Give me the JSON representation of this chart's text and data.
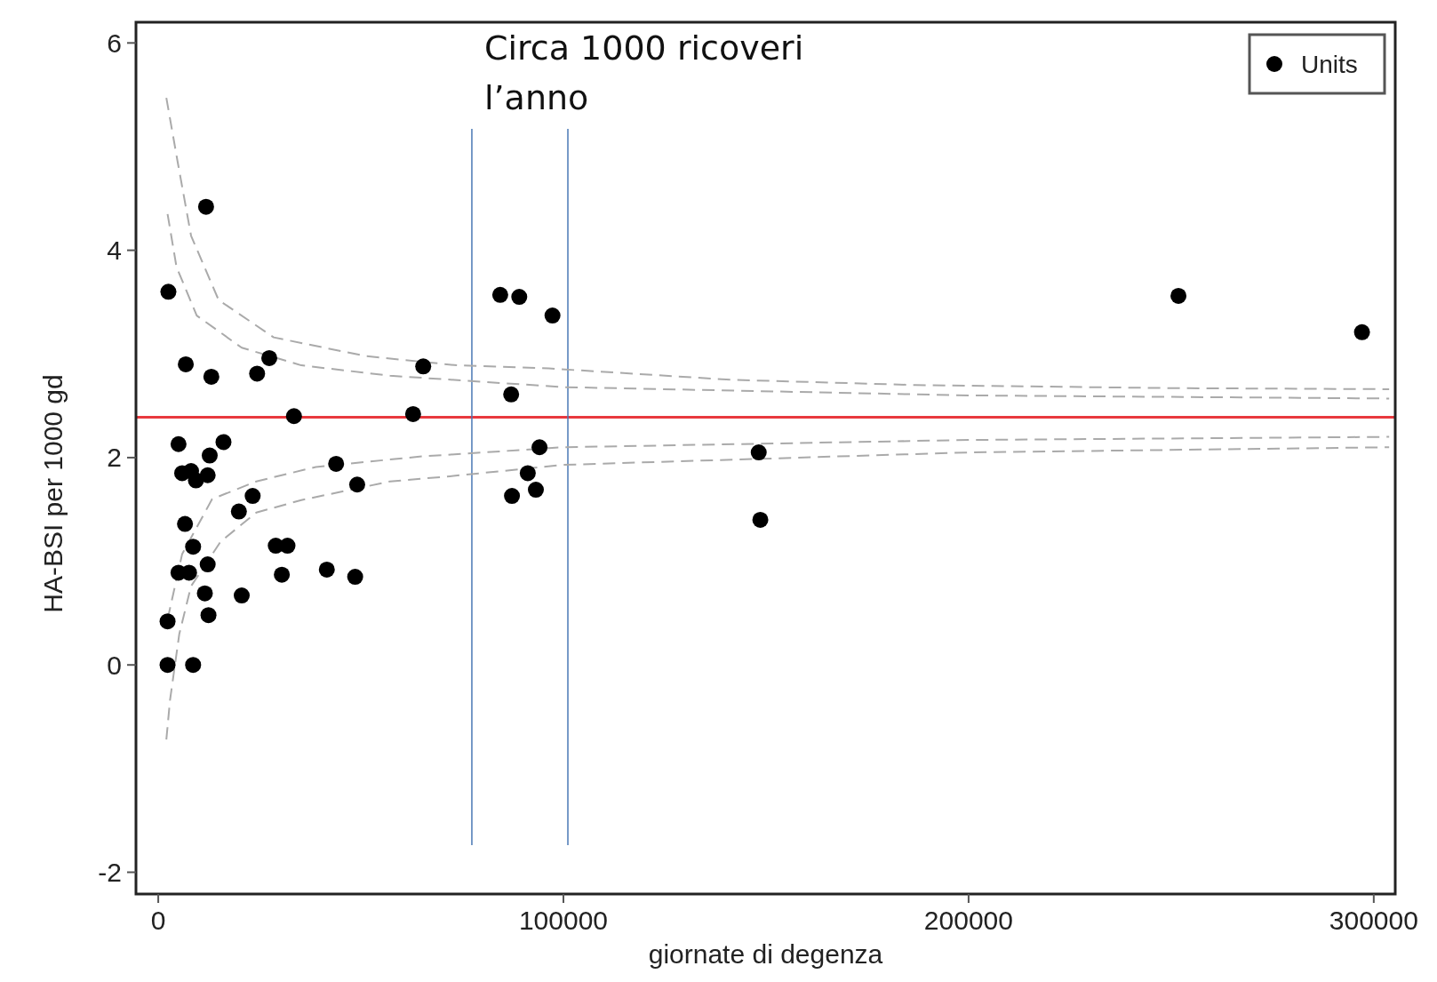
{
  "chart_data": {
    "type": "scatter",
    "xlabel": "giornate di degenza",
    "ylabel": "HA-BSI per 1000 gd",
    "annotations": [
      "Circa 1000 ricoveri l’anno"
    ],
    "xlim": [
      -5500,
      305300
    ],
    "ylim": [
      -2.21,
      6.2
    ],
    "xticks": [
      0,
      100000,
      200000,
      300000
    ],
    "yticks": [
      -2,
      0,
      2,
      4,
      6
    ],
    "grid": false,
    "legend": "top right",
    "marker": "circle",
    "ref_lines": [
      {
        "axis": "y",
        "value": 2.39,
        "color": "#e8393d",
        "line_style": "solid"
      },
      {
        "axis": "x",
        "value": 77400,
        "color": "#4a78b5",
        "line_style": "solid"
      },
      {
        "axis": "x",
        "value": 101100,
        "color": "#4a78b5",
        "line_style": "solid"
      }
    ],
    "series": [
      {
        "type": "line",
        "color": "#aaaaaa",
        "line_style": "dashed",
        "marker": "none",
        "x": [
          2000,
          4800,
          8100,
          14900,
          28500,
          51100,
          73800,
          96400,
          141600,
          186900,
          250000,
          303800
        ],
        "values": [
          5.47,
          4.85,
          4.14,
          3.52,
          3.16,
          2.98,
          2.89,
          2.86,
          2.75,
          2.7,
          2.67,
          2.66
        ]
      },
      {
        "type": "line",
        "color": "#aaaaaa",
        "line_style": "dashed",
        "marker": "none",
        "x": [
          2300,
          4500,
          9500,
          20600,
          35300,
          57200,
          100000,
          200000,
          303800
        ],
        "values": [
          4.35,
          3.84,
          3.37,
          3.06,
          2.89,
          2.79,
          2.68,
          2.6,
          2.57
        ]
      },
      {
        "type": "line",
        "color": "#aaaaaa",
        "line_style": "dashed",
        "marker": "none",
        "x": [
          2300,
          5900,
          13300,
          24200,
          38900,
          64500,
          100000,
          200000,
          303800
        ],
        "values": [
          0.44,
          1.07,
          1.6,
          1.77,
          1.91,
          2.01,
          2.1,
          2.17,
          2.2
        ]
      },
      {
        "type": "line",
        "color": "#aaaaaa",
        "line_style": "dashed",
        "marker": "none",
        "x": [
          2000,
          2900,
          5200,
          8100,
          15400,
          24200,
          35300,
          57200,
          72000,
          100000,
          200000,
          303800
        ],
        "values": [
          -0.72,
          -0.34,
          0.3,
          0.76,
          1.19,
          1.47,
          1.59,
          1.77,
          1.82,
          1.93,
          2.05,
          2.1
        ]
      },
      {
        "name": "Units",
        "color": "#000000",
        "x": [
          11800,
          2500,
          6800,
          13100,
          27400,
          24400,
          65400,
          33500,
          62900,
          5000,
          16100,
          12700,
          5900,
          9300,
          12200,
          8100,
          43900,
          49100,
          23300,
          19900,
          6600,
          8600,
          29000,
          31900,
          12200,
          5000,
          7600,
          30500,
          41600,
          48600,
          11500,
          20600,
          12400,
          2300,
          2300,
          8600,
          84400,
          89100,
          97300,
          87100,
          94100,
          91200,
          93200,
          87300,
          148200,
          148600,
          251800,
          297100
        ],
        "values": [
          4.42,
          3.6,
          2.9,
          2.78,
          2.96,
          2.81,
          2.88,
          2.4,
          2.42,
          2.13,
          2.15,
          2.02,
          1.85,
          1.78,
          1.83,
          1.87,
          1.94,
          1.74,
          1.63,
          1.48,
          1.36,
          1.14,
          1.15,
          1.15,
          0.97,
          0.89,
          0.89,
          0.87,
          0.92,
          0.85,
          0.69,
          0.67,
          0.48,
          0.42,
          0,
          0,
          3.57,
          3.55,
          3.37,
          2.61,
          2.1,
          1.85,
          1.69,
          1.63,
          2.05,
          1.4,
          3.56,
          3.21
        ]
      }
    ]
  }
}
